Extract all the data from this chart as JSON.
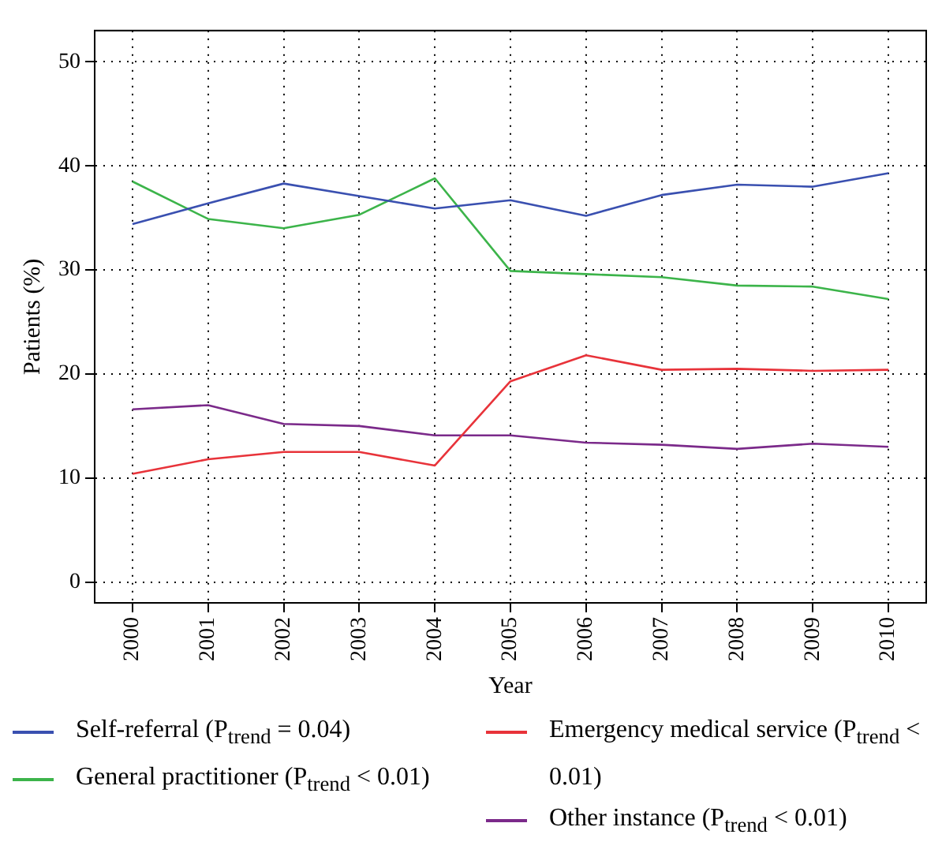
{
  "chart_data": {
    "type": "line",
    "xlabel": "Year",
    "ylabel": "Patients (%)",
    "categories": [
      "2000",
      "2001",
      "2002",
      "2003",
      "2004",
      "2005",
      "2006",
      "2007",
      "2008",
      "2009",
      "2010"
    ],
    "ylim": [
      -2,
      53
    ],
    "yticks": [
      0,
      10,
      20,
      30,
      40,
      50
    ],
    "grid": true,
    "legend": "bottom",
    "series": [
      {
        "name": "Self-referral (P$_{trend}$ = 0.04)",
        "color": "#3a50b0",
        "values": [
          34.4,
          36.4,
          38.3,
          37.1,
          35.9,
          36.7,
          35.2,
          37.2,
          38.2,
          38.0,
          39.3
        ]
      },
      {
        "name": "General practitioner (P$_{trend}$ < 0.01)",
        "color": "#3cb44a",
        "values": [
          38.5,
          34.9,
          34.0,
          35.3,
          38.8,
          29.9,
          29.6,
          29.3,
          28.5,
          28.4,
          27.2
        ]
      },
      {
        "name": "Emergency medical service (P$_{trend}$ < 0.01)",
        "color": "#e8333a",
        "values": [
          10.4,
          11.8,
          12.5,
          12.5,
          11.2,
          19.3,
          21.8,
          20.4,
          20.5,
          20.3,
          20.4
        ]
      },
      {
        "name": "Other instance (P$_{trend}$ < 0.01)",
        "color": "#7b2a8a",
        "values": [
          16.6,
          17.0,
          15.2,
          15.0,
          14.1,
          14.1,
          13.4,
          13.2,
          12.8,
          13.3,
          13.0
        ]
      }
    ]
  }
}
